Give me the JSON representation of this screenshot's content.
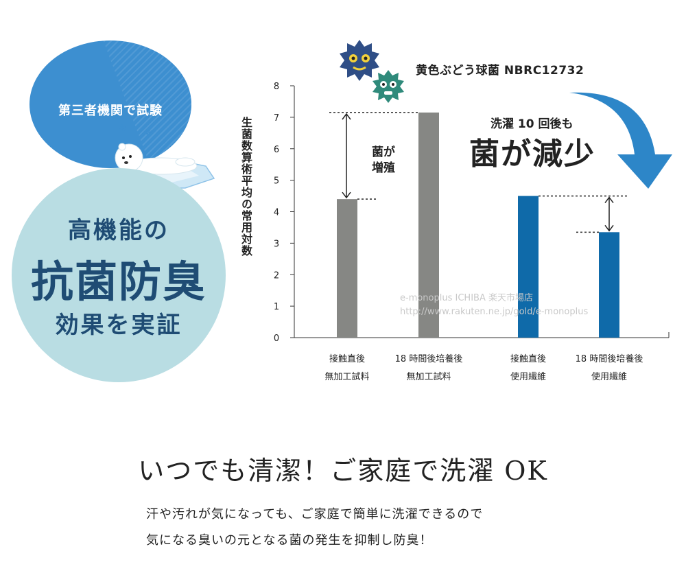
{
  "badge": {
    "bubble_text": "第三者機関で試験",
    "line1": "高機能の",
    "line2": "抗菌防臭",
    "line3": "効果を実証"
  },
  "watermark": {
    "line1": "e-monoplus ICHIBA 楽天市場店",
    "line2": "http://www.rakuten.ne.jp/gold/e-monoplus"
  },
  "annotations": {
    "growth": "菌が増殖",
    "reduce_small": "洗濯 10 回後も",
    "reduce_big": "菌が減少"
  },
  "chart_data": {
    "type": "bar",
    "title": "黄色ぶどう球菌 NBRC12732",
    "ylabel": "生菌数算術平均の常用対数",
    "ylim": [
      0,
      8
    ],
    "yticks": [
      0,
      1,
      2,
      3,
      4,
      5,
      6,
      7,
      8
    ],
    "categories": [
      [
        "接触直後",
        "無加工試料"
      ],
      [
        "18 時間後培養後",
        "無加工試料"
      ],
      [
        "接触直後",
        "使用繊維"
      ],
      [
        "18 時間後培養後",
        "使用繊維"
      ]
    ],
    "values": [
      4.4,
      7.15,
      4.5,
      3.35
    ],
    "colors": [
      "#868784",
      "#868784",
      "#0f6aa9",
      "#0f6aa9"
    ]
  },
  "colors": {
    "bubble": "#3d8fd0",
    "circle": "#b9dde3",
    "badge_text": "#1f4c74",
    "arrow": "#2d86c8"
  },
  "footer": {
    "headline": "いつでも清潔！ご家庭で洗濯 OK",
    "body_line1": "汗や汚れが気になっても、ご家庭で簡単に洗濯できるので",
    "body_line2": "気になる臭いの元となる菌の発生を抑制し防臭！"
  }
}
